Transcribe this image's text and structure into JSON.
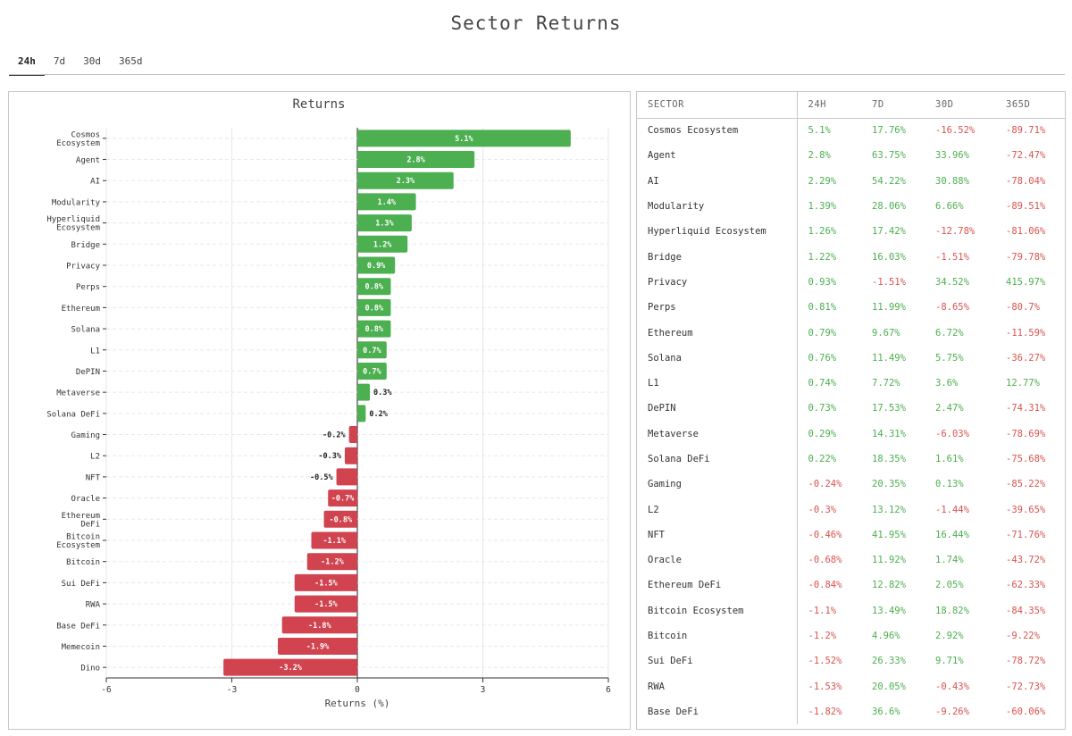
{
  "title": "Sector Returns",
  "tabs": [
    "24h",
    "7d",
    "30d",
    "365d"
  ],
  "active_tab": "24h",
  "colors": {
    "positive": "#4caf50",
    "negative": "#d0434f",
    "pos_text": "#4caf50",
    "neg_text": "#d9534f"
  },
  "chart_data": {
    "type": "bar",
    "orientation": "horizontal",
    "title": "Returns",
    "xlabel": "Returns (%)",
    "ylabel": "",
    "xlim": [
      -6,
      6
    ],
    "xticks": [
      -6,
      -3,
      0,
      3,
      6
    ],
    "grid": true,
    "categories": [
      [
        "Cosmos",
        "Ecosystem"
      ],
      [
        "Agent"
      ],
      [
        "AI"
      ],
      [
        "Modularity"
      ],
      [
        "Hyperliquid",
        "Ecosystem"
      ],
      [
        "Bridge"
      ],
      [
        "Privacy"
      ],
      [
        "Perps"
      ],
      [
        "Ethereum"
      ],
      [
        "Solana"
      ],
      [
        "L1"
      ],
      [
        "DePIN"
      ],
      [
        "Metaverse"
      ],
      [
        "Solana DeFi"
      ],
      [
        "Gaming"
      ],
      [
        "L2"
      ],
      [
        "NFT"
      ],
      [
        "Oracle"
      ],
      [
        "Ethereum",
        "DeFi"
      ],
      [
        "Bitcoin",
        "Ecosystem"
      ],
      [
        "Bitcoin"
      ],
      [
        "Sui DeFi"
      ],
      [
        "RWA"
      ],
      [
        "Base DeFi"
      ],
      [
        "Memecoin"
      ],
      [
        "Dino"
      ]
    ],
    "values": [
      5.1,
      2.8,
      2.3,
      1.4,
      1.3,
      1.2,
      0.9,
      0.8,
      0.8,
      0.8,
      0.7,
      0.7,
      0.3,
      0.2,
      -0.2,
      -0.3,
      -0.5,
      -0.7,
      -0.8,
      -1.1,
      -1.2,
      -1.5,
      -1.5,
      -1.8,
      -1.9,
      -3.2
    ],
    "labels": [
      "5.1%",
      "2.8%",
      "2.3%",
      "1.4%",
      "1.3%",
      "1.2%",
      "0.9%",
      "0.8%",
      "0.8%",
      "0.8%",
      "0.7%",
      "0.7%",
      "0.3%",
      "0.2%",
      "-0.2%",
      "-0.3%",
      "-0.5%",
      "-0.7%",
      "-0.8%",
      "-1.1%",
      "-1.2%",
      "-1.5%",
      "-1.5%",
      "-1.8%",
      "-1.9%",
      "-3.2%"
    ]
  },
  "table": {
    "headers": [
      "SECTOR",
      "24H",
      "7D",
      "30D",
      "365D"
    ],
    "rows": [
      [
        "Cosmos Ecosystem",
        "5.1%",
        "17.76%",
        "-16.52%",
        "-89.71%"
      ],
      [
        "Agent",
        "2.8%",
        "63.75%",
        "33.96%",
        "-72.47%"
      ],
      [
        "AI",
        "2.29%",
        "54.22%",
        "30.88%",
        "-78.04%"
      ],
      [
        "Modularity",
        "1.39%",
        "28.06%",
        "6.66%",
        "-89.51%"
      ],
      [
        "Hyperliquid Ecosystem",
        "1.26%",
        "17.42%",
        "-12.78%",
        "-81.06%"
      ],
      [
        "Bridge",
        "1.22%",
        "16.03%",
        "-1.51%",
        "-79.78%"
      ],
      [
        "Privacy",
        "0.93%",
        "-1.51%",
        "34.52%",
        "415.97%"
      ],
      [
        "Perps",
        "0.81%",
        "11.99%",
        "-8.65%",
        "-80.7%"
      ],
      [
        "Ethereum",
        "0.79%",
        "9.67%",
        "6.72%",
        "-11.59%"
      ],
      [
        "Solana",
        "0.76%",
        "11.49%",
        "5.75%",
        "-36.27%"
      ],
      [
        "L1",
        "0.74%",
        "7.72%",
        "3.6%",
        "12.77%"
      ],
      [
        "DePIN",
        "0.73%",
        "17.53%",
        "2.47%",
        "-74.31%"
      ],
      [
        "Metaverse",
        "0.29%",
        "14.31%",
        "-6.03%",
        "-78.69%"
      ],
      [
        "Solana DeFi",
        "0.22%",
        "18.35%",
        "1.61%",
        "-75.68%"
      ],
      [
        "Gaming",
        "-0.24%",
        "20.35%",
        "0.13%",
        "-85.22%"
      ],
      [
        "L2",
        "-0.3%",
        "13.12%",
        "-1.44%",
        "-39.65%"
      ],
      [
        "NFT",
        "-0.46%",
        "41.95%",
        "16.44%",
        "-71.76%"
      ],
      [
        "Oracle",
        "-0.68%",
        "11.92%",
        "1.74%",
        "-43.72%"
      ],
      [
        "Ethereum DeFi",
        "-0.84%",
        "12.82%",
        "2.05%",
        "-62.33%"
      ],
      [
        "Bitcoin Ecosystem",
        "-1.1%",
        "13.49%",
        "18.82%",
        "-84.35%"
      ],
      [
        "Bitcoin",
        "-1.2%",
        "4.96%",
        "2.92%",
        "-9.22%"
      ],
      [
        "Sui DeFi",
        "-1.52%",
        "26.33%",
        "9.71%",
        "-78.72%"
      ],
      [
        "RWA",
        "-1.53%",
        "20.05%",
        "-0.43%",
        "-72.73%"
      ],
      [
        "Base DeFi",
        "-1.82%",
        "36.6%",
        "-9.26%",
        "-60.06%"
      ]
    ]
  }
}
